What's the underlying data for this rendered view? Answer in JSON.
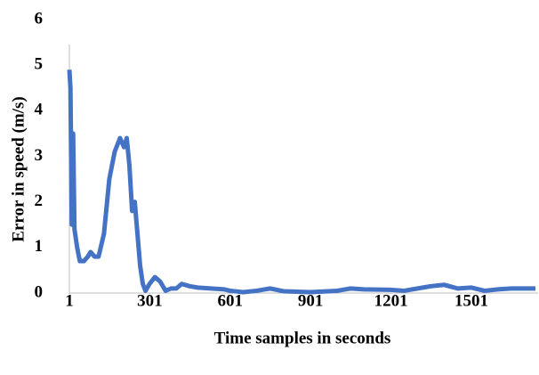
{
  "chart_data": {
    "type": "line",
    "x_label": "Time samples in seconds",
    "y_label": "Error in speed (m/s)",
    "xlim": [
      1,
      1750
    ],
    "xticks": [
      1,
      301,
      601,
      901,
      1201,
      1501
    ],
    "ylim": [
      0,
      6
    ],
    "yticks": [
      0,
      1,
      2,
      3,
      4,
      5,
      6
    ],
    "grid": false,
    "series": [
      {
        "color": "#4472c4",
        "x": [
          1,
          5,
          10,
          15,
          20,
          30,
          40,
          55,
          70,
          80,
          95,
          110,
          130,
          150,
          170,
          190,
          205,
          215,
          225,
          235,
          245,
          255,
          265,
          275,
          285,
          300,
          320,
          340,
          360,
          380,
          400,
          420,
          450,
          480,
          530,
          580,
          601,
          650,
          700,
          750,
          800,
          900,
          1000,
          1050,
          1100,
          1200,
          1250,
          1300,
          1350,
          1400,
          1450,
          1500,
          1550,
          1600,
          1650,
          1700,
          1740
        ],
        "values": [
          4.9,
          4.5,
          1.5,
          3.5,
          1.4,
          1.0,
          0.7,
          0.7,
          0.8,
          0.9,
          0.8,
          0.8,
          1.3,
          2.5,
          3.1,
          3.4,
          3.2,
          3.4,
          2.8,
          1.8,
          2.0,
          1.3,
          0.6,
          0.2,
          0.05,
          0.2,
          0.35,
          0.25,
          0.05,
          0.1,
          0.1,
          0.2,
          0.15,
          0.12,
          0.1,
          0.08,
          0.05,
          0.02,
          0.05,
          0.1,
          0.04,
          0.02,
          0.05,
          0.1,
          0.08,
          0.07,
          0.05,
          0.1,
          0.15,
          0.18,
          0.1,
          0.12,
          0.05,
          0.08,
          0.1,
          0.1,
          0.1
        ]
      }
    ]
  }
}
